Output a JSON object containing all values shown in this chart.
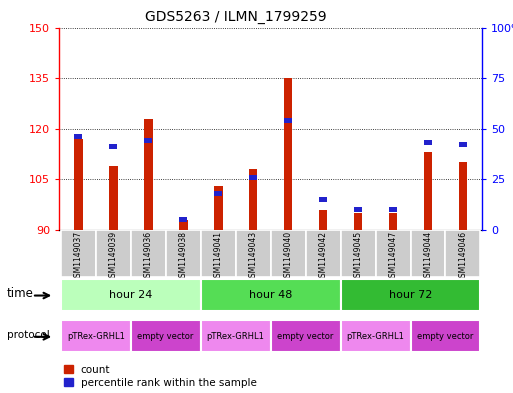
{
  "title": "GDS5263 / ILMN_1799259",
  "samples": [
    "GSM1149037",
    "GSM1149039",
    "GSM1149036",
    "GSM1149038",
    "GSM1149041",
    "GSM1149043",
    "GSM1149040",
    "GSM1149042",
    "GSM1149045",
    "GSM1149047",
    "GSM1149044",
    "GSM1149046"
  ],
  "red_values": [
    117,
    109,
    123,
    93,
    103,
    108,
    135,
    96,
    95,
    95,
    113,
    110
  ],
  "blue_percentiles": [
    46,
    41,
    44,
    5,
    18,
    26,
    54,
    15,
    10,
    10,
    43,
    42
  ],
  "ylim_left": [
    90,
    150
  ],
  "ylim_right": [
    0,
    100
  ],
  "yticks_left": [
    90,
    105,
    120,
    135,
    150
  ],
  "yticks_right": [
    0,
    25,
    50,
    75,
    100
  ],
  "red_color": "#cc2200",
  "blue_color": "#2222cc",
  "red_bar_width": 0.25,
  "blue_bar_width": 0.22,
  "time_groups": [
    {
      "label": "hour 24",
      "start": 0,
      "end": 3
    },
    {
      "label": "hour 48",
      "start": 4,
      "end": 7
    },
    {
      "label": "hour 72",
      "start": 8,
      "end": 11
    }
  ],
  "time_colors": [
    "#bbffbb",
    "#55dd55",
    "#33bb33"
  ],
  "protocol_groups": [
    {
      "label": "pTRex-GRHL1",
      "start": 0,
      "end": 1
    },
    {
      "label": "empty vector",
      "start": 2,
      "end": 3
    },
    {
      "label": "pTRex-GRHL1",
      "start": 4,
      "end": 5
    },
    {
      "label": "empty vector",
      "start": 6,
      "end": 7
    },
    {
      "label": "pTRex-GRHL1",
      "start": 8,
      "end": 9
    },
    {
      "label": "empty vector",
      "start": 10,
      "end": 11
    }
  ],
  "proto_color_pink": "#ee88ee",
  "proto_color_purple": "#cc44cc",
  "sample_bg_color": "#cccccc"
}
